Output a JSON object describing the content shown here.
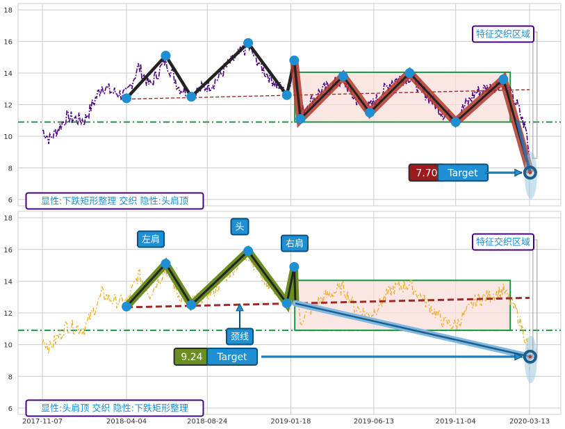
{
  "chart_data": [
    {
      "type": "line",
      "panel": "top",
      "ylim": [
        5.6,
        18.4
      ],
      "y_ticks": [
        6,
        8,
        10,
        12,
        14,
        16,
        18
      ],
      "grid": true,
      "price_line_color": "#4b0082",
      "support_level": 10.9,
      "neckline": {
        "from": [
          "2018-04-04",
          12.35
        ],
        "to": [
          "2020-03-13",
          12.95
        ]
      },
      "zigzag": [
        [
          "2018-04-04",
          12.4
        ],
        [
          "2018-06-12",
          15.1
        ],
        [
          "2018-07-27",
          12.5
        ],
        [
          "2018-11-04",
          15.9
        ],
        [
          "2019-01-11",
          12.6
        ],
        [
          "2019-01-24",
          14.8
        ],
        [
          "2019-02-04",
          11.1
        ],
        [
          "2019-04-20",
          13.8
        ],
        [
          "2019-06-06",
          11.5
        ],
        [
          "2019-08-15",
          14.0
        ],
        [
          "2019-11-04",
          10.9
        ],
        [
          "2020-01-27",
          13.6
        ],
        [
          "2020-03-14",
          7.7
        ]
      ],
      "rectangle": {
        "x_start": "2019-01-25",
        "x_end": "2020-02-08",
        "y_low": 10.9,
        "y_high": 14.05
      },
      "target_value": "7.70",
      "target_label": "Target",
      "target_box_color": "#9b1c1c",
      "feature_label": "特征交织区域",
      "info_label": "显性:下跌矩形整理 交织 隐性:头肩顶"
    },
    {
      "type": "line",
      "panel": "bottom",
      "ylim": [
        5.6,
        18.4
      ],
      "y_ticks": [
        6,
        8,
        10,
        12,
        14,
        16,
        18
      ],
      "grid": true,
      "price_line_color": "#f0b030",
      "support_level": 10.9,
      "neckline": {
        "from": [
          "2018-04-04",
          12.35
        ],
        "to": [
          "2020-03-13",
          12.95
        ]
      },
      "zigzag": [
        [
          "2018-04-04",
          12.4
        ],
        [
          "2018-06-12",
          15.1
        ],
        [
          "2018-07-27",
          12.5
        ],
        [
          "2018-11-04",
          15.9
        ],
        [
          "2019-01-11",
          12.6
        ],
        [
          "2019-01-24",
          14.9
        ],
        [
          "2019-01-26",
          12.6
        ]
      ],
      "target_line": {
        "from": [
          "2019-01-26",
          12.6
        ],
        "to": [
          "2020-03-14",
          9.24
        ]
      },
      "rectangle": {
        "x_start": "2019-01-25",
        "x_end": "2020-02-08",
        "y_low": 10.9,
        "y_high": 14.05
      },
      "target_value": "9.24",
      "target_label": "Target",
      "target_box_color": "#6b8e23",
      "left_shoulder_label": "左肩",
      "head_label": "头",
      "right_shoulder_label": "右肩",
      "neckline_label": "颈线",
      "feature_label": "特征交织区域",
      "info_label": "显性:头肩顶 交织 隐性:下跌矩形整理"
    }
  ],
  "x_tick_labels": [
    "2017-11-07",
    "2018-04-04",
    "2018-08-24",
    "2019-01-18",
    "2019-06-13",
    "2019-11-04",
    "2020-03-13"
  ],
  "colors": {
    "grid": "#cccccc",
    "support": "#1a9641",
    "rectangle_stroke": "#1a9641",
    "rectangle_fill": "#f8dcd6",
    "neckline": "#a02828",
    "marker": "#1e8fd2",
    "label_box": "#1e8fd2",
    "info_border": "#4b0082"
  }
}
